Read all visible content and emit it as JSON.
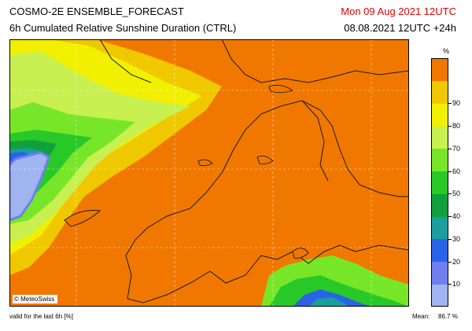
{
  "header": {
    "model": "COSMO-2E ENSEMBLE_FORECAST",
    "product": "6h Cumulated Relative Sunshine Duration (CTRL)",
    "valid_time": "Mon 09 Aug 2021 12UTC",
    "init_time": "08.08.2021 12UTC +24h"
  },
  "logo": {
    "text": "© MeteoSwiss"
  },
  "legend": {
    "unit": "%",
    "bins": [
      {
        "label": "10",
        "color": "#a0b4f0"
      },
      {
        "label": "20",
        "color": "#6f7ff0"
      },
      {
        "label": "30",
        "color": "#2a63e8"
      },
      {
        "label": "40",
        "color": "#1b9e9e"
      },
      {
        "label": "50",
        "color": "#10a03c"
      },
      {
        "label": "60",
        "color": "#28c828"
      },
      {
        "label": "70",
        "color": "#78e628"
      },
      {
        "label": "80",
        "color": "#c8f050"
      },
      {
        "label": "90",
        "color": "#f0f000"
      },
      {
        "label": "",
        "color": "#f0c800"
      },
      {
        "label": "",
        "color": "#f07800"
      }
    ]
  },
  "footer": {
    "note": "valid for the last 6h [%]",
    "mean_label": "Mean:",
    "mean_value": "86.7 %"
  }
}
